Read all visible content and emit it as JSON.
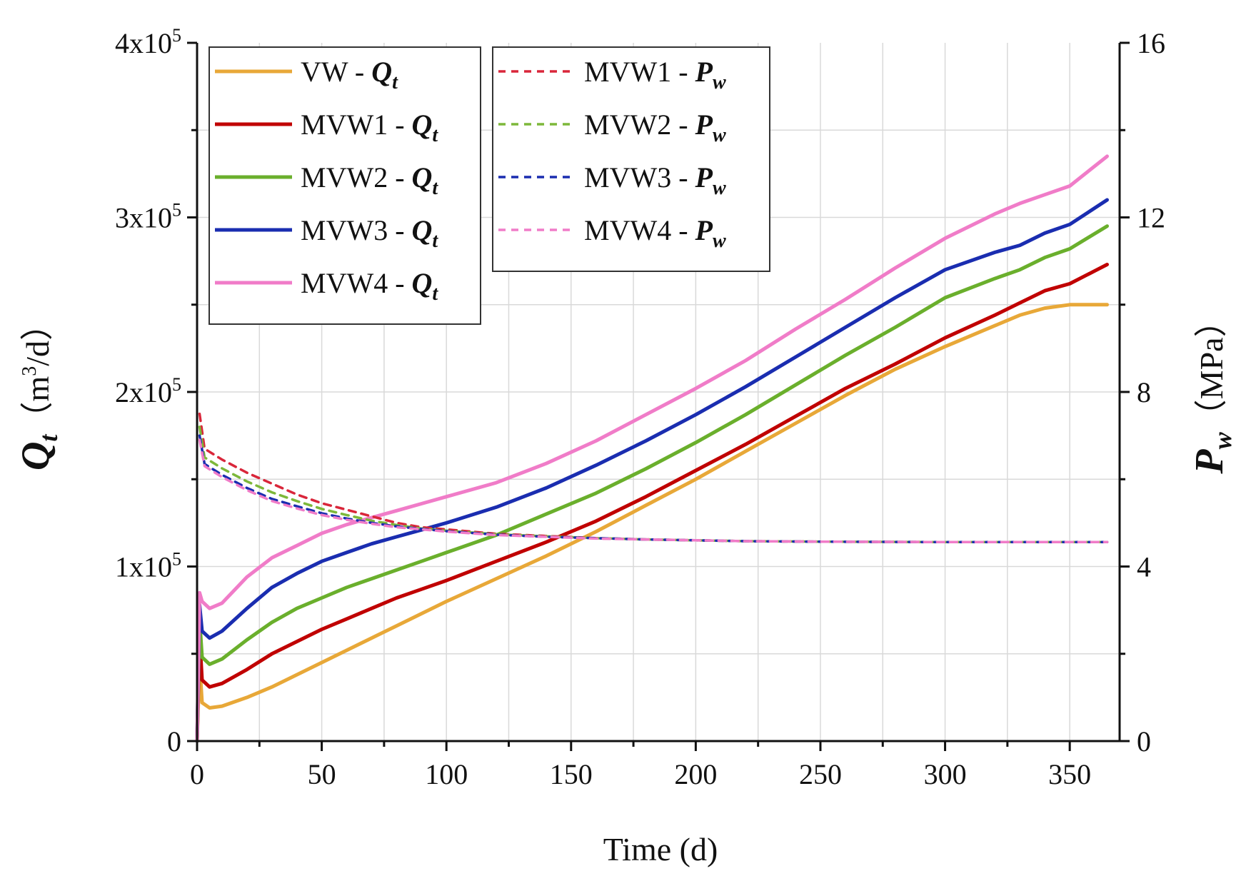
{
  "chart_data": {
    "type": "line",
    "xlabel": "Time (d)",
    "xlim": [
      0,
      370
    ],
    "xticks": [
      0,
      50,
      100,
      150,
      200,
      250,
      300,
      350
    ],
    "y_left": {
      "label_main": "Q",
      "label_sub": "t",
      "label_unit_pre": "（m",
      "label_unit_sup": "3",
      "label_unit_post": "/d）",
      "lim": [
        0,
        400000
      ],
      "ticks": [
        {
          "value": 0,
          "mant": "0",
          "exp": ""
        },
        {
          "value": 100000,
          "mant": "1x10",
          "exp": "5"
        },
        {
          "value": 200000,
          "mant": "2x10",
          "exp": "5"
        },
        {
          "value": 300000,
          "mant": "3x10",
          "exp": "5"
        },
        {
          "value": 400000,
          "mant": "4x10",
          "exp": "5"
        }
      ]
    },
    "y_right": {
      "label_main": "P",
      "label_sub": "w",
      "label_unit": "（MPa）",
      "lim": [
        0,
        16
      ],
      "ticks": [
        0,
        4,
        8,
        12,
        16
      ]
    },
    "grid": true,
    "legend_placement": "top-left",
    "series": [
      {
        "name": "VW - Qt",
        "legend_prefix": "VW - ",
        "legend_var": "Q",
        "legend_sub": "t",
        "axis": "left",
        "style": "solid",
        "color": "#E8A838",
        "x": [
          0,
          1,
          2,
          5,
          10,
          20,
          30,
          40,
          50,
          60,
          70,
          80,
          90,
          100,
          120,
          140,
          160,
          180,
          200,
          220,
          240,
          260,
          280,
          300,
          320,
          330,
          340,
          350,
          365
        ],
        "y": [
          0,
          45000,
          22000,
          19000,
          20000,
          25000,
          31000,
          38000,
          45000,
          52000,
          59000,
          66000,
          73000,
          80000,
          93000,
          106000,
          120000,
          135000,
          150000,
          166000,
          182000,
          198000,
          213000,
          226000,
          238000,
          244000,
          248000,
          250000,
          250000
        ]
      },
      {
        "name": "MVW1 - Qt",
        "legend_prefix": "MVW1 - ",
        "legend_var": "Q",
        "legend_sub": "t",
        "axis": "left",
        "style": "solid",
        "color": "#C00000",
        "x": [
          0,
          1,
          2,
          5,
          10,
          20,
          30,
          40,
          50,
          60,
          70,
          80,
          90,
          100,
          120,
          140,
          160,
          180,
          200,
          220,
          240,
          260,
          280,
          300,
          320,
          330,
          340,
          350,
          365
        ],
        "y": [
          0,
          60000,
          35000,
          31000,
          33000,
          41000,
          50000,
          57000,
          64000,
          70000,
          76000,
          82000,
          87000,
          92000,
          103000,
          114000,
          126000,
          140000,
          155000,
          170000,
          186000,
          202000,
          216000,
          231000,
          244000,
          251000,
          258000,
          262000,
          273000
        ]
      },
      {
        "name": "MVW2 - Qt",
        "legend_prefix": "MVW2 - ",
        "legend_var": "Q",
        "legend_sub": "t",
        "axis": "left",
        "style": "solid",
        "color": "#6AAF2C",
        "x": [
          0,
          1,
          2,
          5,
          10,
          20,
          30,
          40,
          50,
          60,
          70,
          80,
          90,
          100,
          120,
          140,
          160,
          180,
          200,
          220,
          240,
          260,
          280,
          300,
          320,
          330,
          340,
          350,
          365
        ],
        "y": [
          0,
          70000,
          48000,
          44000,
          47000,
          58000,
          68000,
          76000,
          82000,
          88000,
          93000,
          98000,
          103000,
          108000,
          118000,
          130000,
          142000,
          156000,
          171000,
          187000,
          204000,
          221000,
          237000,
          254000,
          265000,
          270000,
          277000,
          282000,
          295000
        ]
      },
      {
        "name": "MVW3 - Qt",
        "legend_prefix": "MVW3 - ",
        "legend_var": "Q",
        "legend_sub": "t",
        "axis": "left",
        "style": "solid",
        "color": "#1A2DB0",
        "x": [
          0,
          1,
          2,
          5,
          10,
          20,
          30,
          40,
          50,
          60,
          70,
          80,
          90,
          100,
          120,
          140,
          160,
          180,
          200,
          220,
          240,
          260,
          280,
          300,
          320,
          330,
          340,
          350,
          365
        ],
        "y": [
          0,
          78000,
          63000,
          59000,
          63000,
          76000,
          88000,
          96000,
          103000,
          108000,
          113000,
          117000,
          121000,
          125000,
          134000,
          145000,
          158000,
          172000,
          187000,
          203000,
          220000,
          237000,
          254000,
          270000,
          280000,
          284000,
          291000,
          296000,
          310000
        ]
      },
      {
        "name": "MVW4 - Qt",
        "legend_prefix": "MVW4 - ",
        "legend_var": "Q",
        "legend_sub": "t",
        "axis": "left",
        "style": "solid",
        "color": "#F07CC8",
        "x": [
          0,
          1,
          2,
          5,
          10,
          20,
          30,
          40,
          50,
          60,
          70,
          80,
          90,
          100,
          120,
          140,
          160,
          180,
          200,
          220,
          240,
          260,
          280,
          300,
          320,
          330,
          340,
          350,
          365
        ],
        "y": [
          0,
          85000,
          80000,
          76000,
          79000,
          94000,
          105000,
          112000,
          119000,
          124000,
          128000,
          132000,
          136000,
          140000,
          148000,
          159000,
          172000,
          187000,
          202000,
          218000,
          236000,
          253000,
          271000,
          288000,
          302000,
          308000,
          313000,
          318000,
          335000
        ]
      },
      {
        "name": "MVW1 - Pw",
        "legend_prefix": "MVW1 - ",
        "legend_var": "P",
        "legend_sub": "w",
        "axis": "right",
        "style": "dashed",
        "color": "#D9263A",
        "x": [
          1,
          3,
          10,
          20,
          30,
          40,
          50,
          60,
          70,
          80,
          90,
          100,
          120,
          140,
          160,
          180,
          200,
          220,
          250,
          300,
          350,
          365
        ],
        "y": [
          7.5,
          6.7,
          6.45,
          6.15,
          5.9,
          5.65,
          5.45,
          5.3,
          5.15,
          5.0,
          4.9,
          4.85,
          4.75,
          4.7,
          4.65,
          4.62,
          4.6,
          4.58,
          4.57,
          4.56,
          4.56,
          4.56
        ]
      },
      {
        "name": "MVW2 - Pw",
        "legend_prefix": "MVW2 - ",
        "legend_var": "P",
        "legend_sub": "w",
        "axis": "right",
        "style": "dashed",
        "color": "#7DB83A",
        "x": [
          1,
          3,
          10,
          20,
          30,
          40,
          50,
          60,
          70,
          80,
          90,
          100,
          120,
          140,
          160,
          180,
          200,
          220,
          250,
          300,
          350,
          365
        ],
        "y": [
          7.2,
          6.5,
          6.25,
          5.95,
          5.7,
          5.5,
          5.32,
          5.18,
          5.05,
          4.95,
          4.87,
          4.82,
          4.74,
          4.69,
          4.65,
          4.62,
          4.6,
          4.58,
          4.57,
          4.56,
          4.56,
          4.56
        ]
      },
      {
        "name": "MVW3 - Pw",
        "legend_prefix": "MVW3 - ",
        "legend_var": "P",
        "legend_sub": "w",
        "axis": "right",
        "style": "dashed",
        "color": "#1A2DB0",
        "x": [
          1,
          3,
          10,
          20,
          30,
          40,
          50,
          60,
          70,
          80,
          90,
          100,
          120,
          140,
          160,
          180,
          200,
          220,
          250,
          300,
          350,
          365
        ],
        "y": [
          7.0,
          6.35,
          6.1,
          5.8,
          5.55,
          5.38,
          5.22,
          5.1,
          5.0,
          4.92,
          4.86,
          4.81,
          4.73,
          4.68,
          4.65,
          4.62,
          4.6,
          4.58,
          4.57,
          4.56,
          4.56,
          4.56
        ]
      },
      {
        "name": "MVW4 - Pw",
        "legend_prefix": "MVW4 - ",
        "legend_var": "P",
        "legend_sub": "w",
        "axis": "right",
        "style": "dashed",
        "color": "#F07CC8",
        "x": [
          1,
          3,
          10,
          20,
          30,
          40,
          50,
          60,
          70,
          80,
          90,
          100,
          120,
          140,
          160,
          180,
          200,
          220,
          250,
          300,
          350,
          365
        ],
        "y": [
          6.9,
          6.3,
          6.05,
          5.75,
          5.5,
          5.33,
          5.18,
          5.07,
          4.98,
          4.9,
          4.85,
          4.8,
          4.72,
          4.68,
          4.64,
          4.62,
          4.6,
          4.58,
          4.57,
          4.56,
          4.56,
          4.56
        ]
      }
    ]
  }
}
